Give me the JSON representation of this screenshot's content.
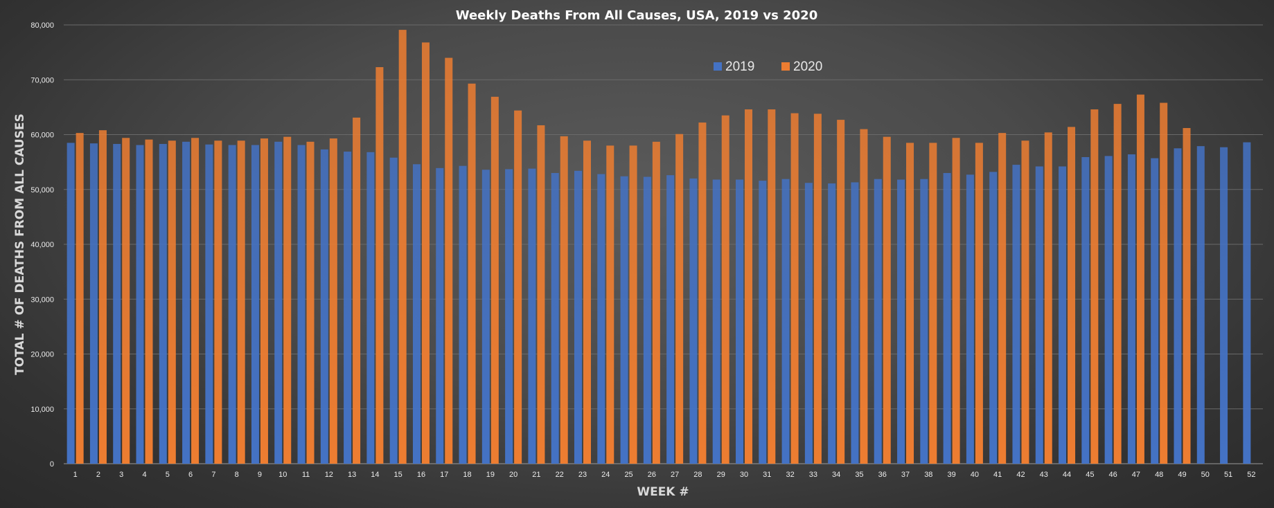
{
  "chart_data": {
    "type": "bar",
    "title": "Weekly Deaths From All Causes, USA, 2019 vs 2020",
    "xlabel": "WEEK #",
    "ylabel": "TOTAL # OF DEATHS FROM ALL CAUSES",
    "ylim": [
      0,
      80000
    ],
    "yticks": [
      "0",
      "10,000",
      "20,000",
      "30,000",
      "40,000",
      "50,000",
      "60,000",
      "70,000",
      "80,000"
    ],
    "grid": true,
    "legend_position": "top-center",
    "categories": [
      "1",
      "2",
      "3",
      "4",
      "5",
      "6",
      "7",
      "8",
      "9",
      "10",
      "11",
      "12",
      "13",
      "14",
      "15",
      "16",
      "17",
      "18",
      "19",
      "20",
      "21",
      "22",
      "23",
      "24",
      "25",
      "26",
      "27",
      "28",
      "29",
      "30",
      "31",
      "32",
      "33",
      "34",
      "35",
      "36",
      "37",
      "38",
      "39",
      "40",
      "41",
      "42",
      "43",
      "44",
      "45",
      "46",
      "47",
      "48",
      "49",
      "50",
      "51",
      "52"
    ],
    "series": [
      {
        "name": "2019",
        "color": "#4472c4",
        "values": [
          58500,
          58400,
          58300,
          58100,
          58300,
          58700,
          58200,
          58100,
          58100,
          58700,
          58100,
          57300,
          56900,
          56800,
          55800,
          54600,
          53900,
          54300,
          53600,
          53700,
          53800,
          53000,
          53400,
          52800,
          52400,
          52300,
          52600,
          52000,
          51800,
          51800,
          51600,
          51900,
          51200,
          51100,
          51300,
          51900,
          51800,
          51900,
          53000,
          52700,
          53200,
          54500,
          54200,
          54200,
          55900,
          56100,
          56400,
          55700,
          57500,
          57900,
          57700,
          58600
        ]
      },
      {
        "name": "2020",
        "color": "#ed7d31",
        "values": [
          60300,
          60800,
          59400,
          59100,
          58900,
          59400,
          58900,
          58900,
          59300,
          59600,
          58700,
          59300,
          63100,
          72300,
          79100,
          76800,
          74000,
          69300,
          66900,
          64400,
          61700,
          59700,
          58900,
          58000,
          58000,
          58700,
          60100,
          62200,
          63500,
          64600,
          64600,
          63900,
          63800,
          62700,
          61000,
          59600,
          58500,
          58500,
          59400,
          58500,
          60300,
          58900,
          60400,
          61400,
          64600,
          65600,
          67300,
          65800,
          61200,
          null,
          null,
          null
        ]
      }
    ]
  }
}
